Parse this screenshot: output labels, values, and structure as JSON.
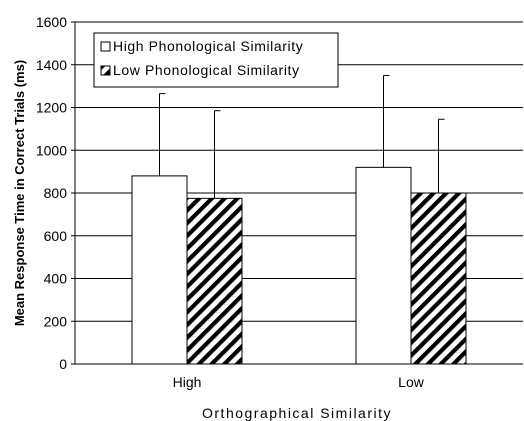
{
  "chart_data": {
    "type": "bar",
    "categories": [
      "High",
      "Low"
    ],
    "series": [
      {
        "name": "High Phonological Similarity",
        "values": [
          880,
          920
        ],
        "error": [
          385,
          430
        ],
        "fill": "white"
      },
      {
        "name": "Low Phonological Similarity",
        "values": [
          775,
          800
        ],
        "error": [
          410,
          345
        ],
        "fill": "hatch"
      }
    ],
    "xlabel": "Orthographical Similarity",
    "ylabel": "Mean Response Time in Correct Trials (ms)",
    "ylim": [
      0,
      1600
    ],
    "yticks": [
      0,
      200,
      400,
      600,
      800,
      1000,
      1200,
      1400,
      1600
    ],
    "grid": true,
    "legend_position": "top-left"
  }
}
